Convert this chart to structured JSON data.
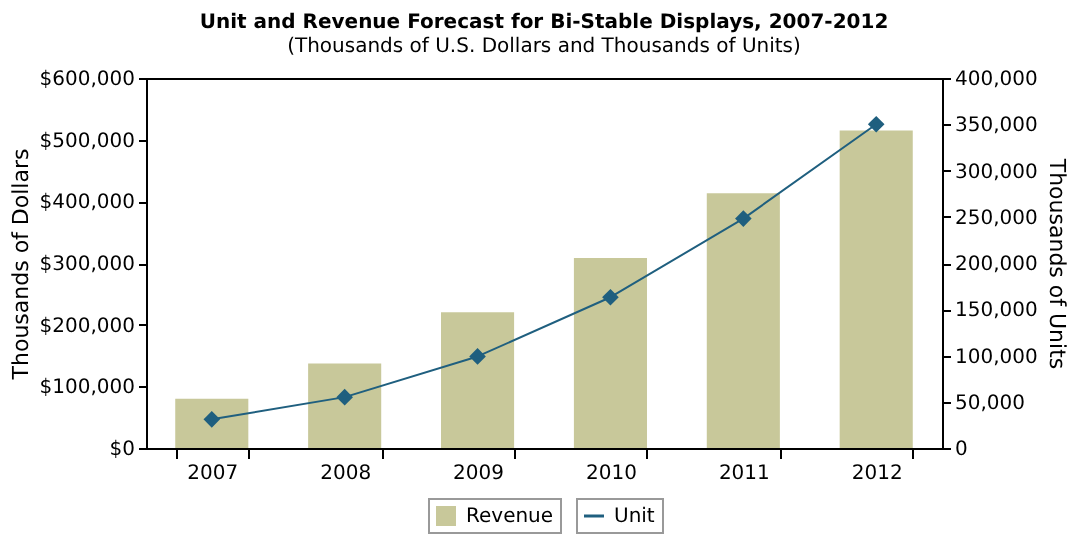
{
  "chart_data": {
    "type": "bar",
    "title": "Unit and Revenue Forecast for Bi-Stable Displays, 2007-2012",
    "subtitle": "(Thousands of U.S. Dollars and Thousands of Units)",
    "ylabel": "Thousands of Dollars",
    "y2label": "Thousands of Units",
    "categories": [
      "2007",
      "2008",
      "2009",
      "2010",
      "2011",
      "2012"
    ],
    "series": [
      {
        "name": "Revenue",
        "color": "#c8c89a",
        "values": [
          80000,
          137000,
          220000,
          308000,
          413000,
          515000
        ]
      },
      {
        "name": "Unit",
        "type": "line",
        "axis": "y2",
        "color": "#1f5f7f",
        "marker": "diamond",
        "values": [
          31000,
          55000,
          99000,
          163000,
          248000,
          350000
        ]
      }
    ],
    "ylim": [
      0,
      600000
    ],
    "yticks": [
      {
        "value": 0,
        "label": "$0"
      },
      {
        "value": 100000,
        "label": "$100,000"
      },
      {
        "value": 200000,
        "label": "$200,000"
      },
      {
        "value": 300000,
        "label": "$300,000"
      },
      {
        "value": 400000,
        "label": "$400,000"
      },
      {
        "value": 500000,
        "label": "$500,000"
      },
      {
        "value": 600000,
        "label": "$600,000"
      }
    ],
    "y2lim": [
      0,
      400000
    ],
    "y2ticks": [
      0,
      {
        "value": 50000,
        "label": "50,000"
      },
      {
        "value": 100000,
        "label": "100,000"
      },
      {
        "value": 150000,
        "label": "150,000"
      },
      {
        "value": 200000,
        "label": "200,000"
      },
      {
        "value": 250000,
        "label": "250,000"
      },
      {
        "value": 300000,
        "label": "300,000"
      },
      {
        "value": 350000,
        "label": "350,000"
      },
      {
        "value": 400000,
        "label": "400,000"
      }
    ],
    "grid": false,
    "legend": "bottom"
  }
}
